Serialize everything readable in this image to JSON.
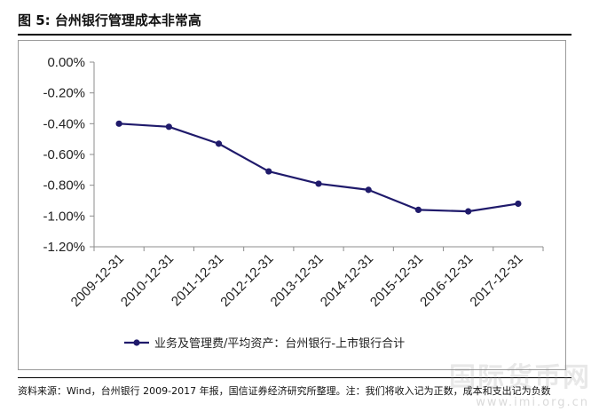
{
  "figure": {
    "title": "图 5:  台州银行管理成本非常高",
    "source_note": "资料来源：Wind，台州银行 2009-2017 年报，国信证券经济研究所整理。注：我们将收入记为正数，成本和支出记为负数",
    "watermark": "国际货币网",
    "watermark_url": "www.imi.org.cn"
  },
  "chart_data": {
    "type": "line",
    "title": "",
    "xlabel": "",
    "ylabel": "",
    "categories": [
      "2009-12-31",
      "2010-12-31",
      "2011-12-31",
      "2012-12-31",
      "2013-12-31",
      "2014-12-31",
      "2015-12-31",
      "2016-12-31",
      "2017-12-31"
    ],
    "series": [
      {
        "name": "业务及管理费/平均资产：台州银行-上市银行合计",
        "values": [
          -0.4,
          -0.42,
          -0.53,
          -0.71,
          -0.79,
          -0.83,
          -0.96,
          -0.97,
          -0.92
        ],
        "color": "#1f1a6b"
      }
    ],
    "ylim": [
      -1.2,
      0.0
    ],
    "yticks": [
      0.0,
      -0.2,
      -0.4,
      -0.6,
      -0.8,
      -1.0,
      -1.2
    ],
    "ytick_labels": [
      "0.00%",
      "-0.20%",
      "-0.40%",
      "-0.60%",
      "-0.80%",
      "-1.00%",
      "-1.20%"
    ],
    "grid": false,
    "legend_position": "bottom"
  }
}
